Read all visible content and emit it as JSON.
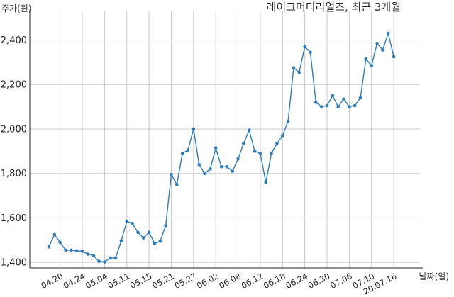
{
  "chart_data": {
    "type": "line",
    "title": "레이크머티리얼즈, 최근 3개월",
    "ylabel": "주가(원)",
    "xlabel": "날짜(일)",
    "ylim": [
      1375,
      2510
    ],
    "yticks": [
      1400,
      1600,
      1800,
      2000,
      2200,
      2400
    ],
    "ytick_labels": [
      "1,400",
      "1,600",
      "1,800",
      "2,000",
      "2,200",
      "2,400"
    ],
    "xtick_labels": [
      "04.20",
      "04.24",
      "05.04",
      "05.11",
      "05.15",
      "05.21",
      "05.27",
      "06.02",
      "06.08",
      "06.12",
      "06.18",
      "06.24",
      "06.30",
      "07.06",
      "07.10",
      "20.07.16"
    ],
    "xtick_indices": [
      2,
      6,
      10,
      14,
      18,
      22,
      26,
      30,
      34,
      38,
      42,
      46,
      50,
      54,
      58,
      62
    ],
    "grid": true,
    "color": "#2f7bb6",
    "series": [
      {
        "values": [
          1470,
          1525,
          1490,
          1455,
          1455,
          1452,
          1450,
          1437,
          1430,
          1405,
          1402,
          1420,
          1420,
          1497,
          1585,
          1575,
          1535,
          1510,
          1535,
          1485,
          1495,
          1565,
          1795,
          1750,
          1890,
          1905,
          2000,
          1840,
          1800,
          1820,
          1915,
          1830,
          1830,
          1810,
          1865,
          1935,
          1995,
          1900,
          1890,
          1760,
          1890,
          1935,
          1970,
          2035,
          2275,
          2255,
          2370,
          2345,
          2120,
          2100,
          2105,
          2150,
          2100,
          2135,
          2100,
          2105,
          2140,
          2315,
          2285,
          2385,
          2355,
          2430,
          2325
        ]
      }
    ]
  }
}
